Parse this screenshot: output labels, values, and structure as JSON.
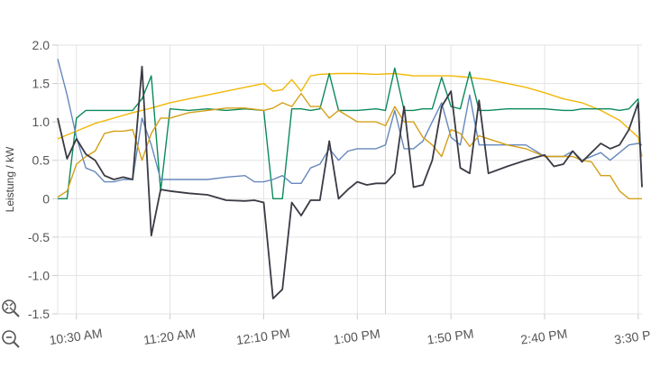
{
  "chart_data": {
    "type": "line",
    "title": "",
    "xlabel": "",
    "ylabel": "Leistung / kW",
    "ylim": [
      -1.5,
      2.0
    ],
    "yticks": [
      -1.5,
      -1.0,
      -0.5,
      0,
      0.5,
      1.0,
      1.5,
      2.0
    ],
    "ytick_labels": [
      "-1.5",
      "-1.0",
      "-0.5",
      "0",
      "0.5",
      "1.0",
      "1.5",
      "2.0"
    ],
    "xlim_minutes": [
      620,
      932
    ],
    "xticks_minutes": [
      630,
      680,
      730,
      780,
      830,
      880,
      930
    ],
    "xtick_labels": [
      "10:30 AM",
      "11:20 AM",
      "12:10 PM",
      "1:00 PM",
      "1:50 PM",
      "2:40 PM",
      "3:30 PM"
    ],
    "vertical_marker_minutes": 795,
    "grid": true,
    "legend": "none",
    "series": [
      {
        "color": "#f2b705",
        "points": [
          [
            620,
            0.78
          ],
          [
            630,
            0.88
          ],
          [
            640,
            0.98
          ],
          [
            650,
            1.05
          ],
          [
            660,
            1.12
          ],
          [
            670,
            1.18
          ],
          [
            680,
            1.25
          ],
          [
            690,
            1.3
          ],
          [
            700,
            1.35
          ],
          [
            710,
            1.4
          ],
          [
            720,
            1.45
          ],
          [
            730,
            1.5
          ],
          [
            735,
            1.4
          ],
          [
            740,
            1.42
          ],
          [
            745,
            1.55
          ],
          [
            750,
            1.4
          ],
          [
            755,
            1.6
          ],
          [
            760,
            1.62
          ],
          [
            770,
            1.63
          ],
          [
            780,
            1.63
          ],
          [
            790,
            1.62
          ],
          [
            800,
            1.63
          ],
          [
            810,
            1.6
          ],
          [
            820,
            1.6
          ],
          [
            830,
            1.6
          ],
          [
            840,
            1.58
          ],
          [
            850,
            1.55
          ],
          [
            860,
            1.5
          ],
          [
            870,
            1.45
          ],
          [
            880,
            1.38
          ],
          [
            890,
            1.3
          ],
          [
            900,
            1.25
          ],
          [
            910,
            1.15
          ],
          [
            920,
            1.02
          ],
          [
            930,
            0.8
          ],
          [
            932,
            0.55
          ]
        ]
      },
      {
        "color": "#0a8a5a",
        "points": [
          [
            620,
            0.0
          ],
          [
            625,
            0.0
          ],
          [
            630,
            1.05
          ],
          [
            635,
            1.15
          ],
          [
            640,
            1.15
          ],
          [
            650,
            1.15
          ],
          [
            660,
            1.15
          ],
          [
            665,
            1.3
          ],
          [
            670,
            1.6
          ],
          [
            675,
            0.1
          ],
          [
            680,
            1.17
          ],
          [
            690,
            1.15
          ],
          [
            700,
            1.17
          ],
          [
            710,
            1.15
          ],
          [
            720,
            1.17
          ],
          [
            730,
            1.15
          ],
          [
            735,
            0.0
          ],
          [
            740,
            0.0
          ],
          [
            745,
            1.17
          ],
          [
            750,
            1.17
          ],
          [
            755,
            1.15
          ],
          [
            760,
            1.17
          ],
          [
            765,
            1.63
          ],
          [
            770,
            1.15
          ],
          [
            780,
            1.15
          ],
          [
            790,
            1.17
          ],
          [
            795,
            1.15
          ],
          [
            800,
            1.7
          ],
          [
            805,
            1.15
          ],
          [
            810,
            1.15
          ],
          [
            815,
            1.17
          ],
          [
            820,
            1.17
          ],
          [
            825,
            1.58
          ],
          [
            830,
            1.2
          ],
          [
            835,
            1.17
          ],
          [
            840,
            1.65
          ],
          [
            845,
            1.15
          ],
          [
            850,
            1.15
          ],
          [
            860,
            1.17
          ],
          [
            870,
            1.17
          ],
          [
            880,
            1.17
          ],
          [
            890,
            1.15
          ],
          [
            895,
            1.15
          ],
          [
            900,
            1.17
          ],
          [
            910,
            1.17
          ],
          [
            915,
            1.17
          ],
          [
            920,
            1.15
          ],
          [
            925,
            1.17
          ],
          [
            930,
            1.3
          ],
          [
            932,
            0.15
          ]
        ]
      },
      {
        "color": "#6688bb",
        "points": [
          [
            620,
            1.82
          ],
          [
            625,
            1.35
          ],
          [
            630,
            0.8
          ],
          [
            635,
            0.4
          ],
          [
            640,
            0.35
          ],
          [
            645,
            0.22
          ],
          [
            650,
            0.22
          ],
          [
            655,
            0.25
          ],
          [
            660,
            0.25
          ],
          [
            665,
            1.05
          ],
          [
            670,
            0.7
          ],
          [
            675,
            0.25
          ],
          [
            680,
            0.25
          ],
          [
            690,
            0.25
          ],
          [
            700,
            0.25
          ],
          [
            710,
            0.28
          ],
          [
            720,
            0.3
          ],
          [
            725,
            0.22
          ],
          [
            730,
            0.22
          ],
          [
            735,
            0.25
          ],
          [
            740,
            0.3
          ],
          [
            745,
            0.2
          ],
          [
            750,
            0.2
          ],
          [
            755,
            0.4
          ],
          [
            760,
            0.45
          ],
          [
            765,
            0.65
          ],
          [
            770,
            0.5
          ],
          [
            775,
            0.62
          ],
          [
            780,
            0.65
          ],
          [
            790,
            0.65
          ],
          [
            795,
            0.7
          ],
          [
            800,
            1.15
          ],
          [
            805,
            0.65
          ],
          [
            810,
            0.65
          ],
          [
            815,
            0.75
          ],
          [
            820,
            1.0
          ],
          [
            825,
            1.25
          ],
          [
            830,
            0.8
          ],
          [
            835,
            0.7
          ],
          [
            840,
            1.35
          ],
          [
            845,
            0.7
          ],
          [
            850,
            0.7
          ],
          [
            860,
            0.7
          ],
          [
            870,
            0.7
          ],
          [
            880,
            0.55
          ],
          [
            890,
            0.55
          ],
          [
            895,
            0.62
          ],
          [
            900,
            0.5
          ],
          [
            910,
            0.6
          ],
          [
            915,
            0.5
          ],
          [
            920,
            0.6
          ],
          [
            925,
            0.7
          ],
          [
            930,
            0.72
          ],
          [
            932,
            0.7
          ]
        ]
      },
      {
        "color": "#d4a017",
        "points": [
          [
            620,
            0.02
          ],
          [
            625,
            0.1
          ],
          [
            630,
            0.45
          ],
          [
            635,
            0.55
          ],
          [
            640,
            0.62
          ],
          [
            645,
            0.85
          ],
          [
            650,
            0.88
          ],
          [
            655,
            0.88
          ],
          [
            660,
            0.9
          ],
          [
            665,
            0.5
          ],
          [
            670,
            0.85
          ],
          [
            675,
            1.05
          ],
          [
            680,
            1.05
          ],
          [
            690,
            1.12
          ],
          [
            700,
            1.15
          ],
          [
            710,
            1.18
          ],
          [
            720,
            1.18
          ],
          [
            730,
            1.15
          ],
          [
            735,
            1.18
          ],
          [
            740,
            1.25
          ],
          [
            745,
            1.2
          ],
          [
            750,
            1.37
          ],
          [
            755,
            1.2
          ],
          [
            760,
            1.2
          ],
          [
            765,
            1.05
          ],
          [
            770,
            1.15
          ],
          [
            780,
            1.0
          ],
          [
            790,
            1.0
          ],
          [
            795,
            0.95
          ],
          [
            800,
            1.2
          ],
          [
            805,
            1.0
          ],
          [
            810,
            1.0
          ],
          [
            815,
            0.8
          ],
          [
            820,
            0.7
          ],
          [
            825,
            0.55
          ],
          [
            830,
            0.9
          ],
          [
            835,
            0.85
          ],
          [
            840,
            0.68
          ],
          [
            845,
            0.82
          ],
          [
            850,
            0.78
          ],
          [
            860,
            0.7
          ],
          [
            870,
            0.65
          ],
          [
            880,
            0.55
          ],
          [
            890,
            0.55
          ],
          [
            895,
            0.55
          ],
          [
            900,
            0.5
          ],
          [
            905,
            0.48
          ],
          [
            910,
            0.3
          ],
          [
            915,
            0.3
          ],
          [
            920,
            0.1
          ],
          [
            925,
            0.0
          ],
          [
            930,
            0.0
          ],
          [
            932,
            0.0
          ]
        ]
      },
      {
        "color": "#3a3a44",
        "points": [
          [
            620,
            1.05
          ],
          [
            625,
            0.52
          ],
          [
            630,
            0.78
          ],
          [
            635,
            0.58
          ],
          [
            640,
            0.5
          ],
          [
            645,
            0.3
          ],
          [
            650,
            0.25
          ],
          [
            655,
            0.28
          ],
          [
            660,
            0.25
          ],
          [
            665,
            1.72
          ],
          [
            670,
            -0.48
          ],
          [
            675,
            0.12
          ],
          [
            680,
            0.1
          ],
          [
            690,
            0.07
          ],
          [
            700,
            0.05
          ],
          [
            710,
            -0.02
          ],
          [
            720,
            -0.03
          ],
          [
            725,
            -0.02
          ],
          [
            730,
            -0.05
          ],
          [
            735,
            -1.3
          ],
          [
            740,
            -1.18
          ],
          [
            745,
            -0.05
          ],
          [
            750,
            -0.22
          ],
          [
            755,
            -0.02
          ],
          [
            760,
            -0.02
          ],
          [
            765,
            0.75
          ],
          [
            770,
            0.0
          ],
          [
            775,
            0.12
          ],
          [
            780,
            0.22
          ],
          [
            785,
            0.18
          ],
          [
            790,
            0.2
          ],
          [
            795,
            0.2
          ],
          [
            800,
            0.33
          ],
          [
            805,
            1.2
          ],
          [
            810,
            0.15
          ],
          [
            815,
            0.18
          ],
          [
            820,
            0.5
          ],
          [
            825,
            1.2
          ],
          [
            830,
            1.4
          ],
          [
            835,
            0.4
          ],
          [
            840,
            0.33
          ],
          [
            845,
            1.28
          ],
          [
            850,
            0.33
          ],
          [
            860,
            0.42
          ],
          [
            870,
            0.5
          ],
          [
            880,
            0.57
          ],
          [
            885,
            0.42
          ],
          [
            890,
            0.45
          ],
          [
            895,
            0.62
          ],
          [
            900,
            0.48
          ],
          [
            910,
            0.72
          ],
          [
            915,
            0.65
          ],
          [
            920,
            0.7
          ],
          [
            925,
            0.9
          ],
          [
            930,
            1.25
          ],
          [
            932,
            0.15
          ]
        ]
      }
    ]
  },
  "controls": {
    "zoom_in_icon": "zoom-in-icon",
    "zoom_out_icon": "zoom-out-icon"
  }
}
